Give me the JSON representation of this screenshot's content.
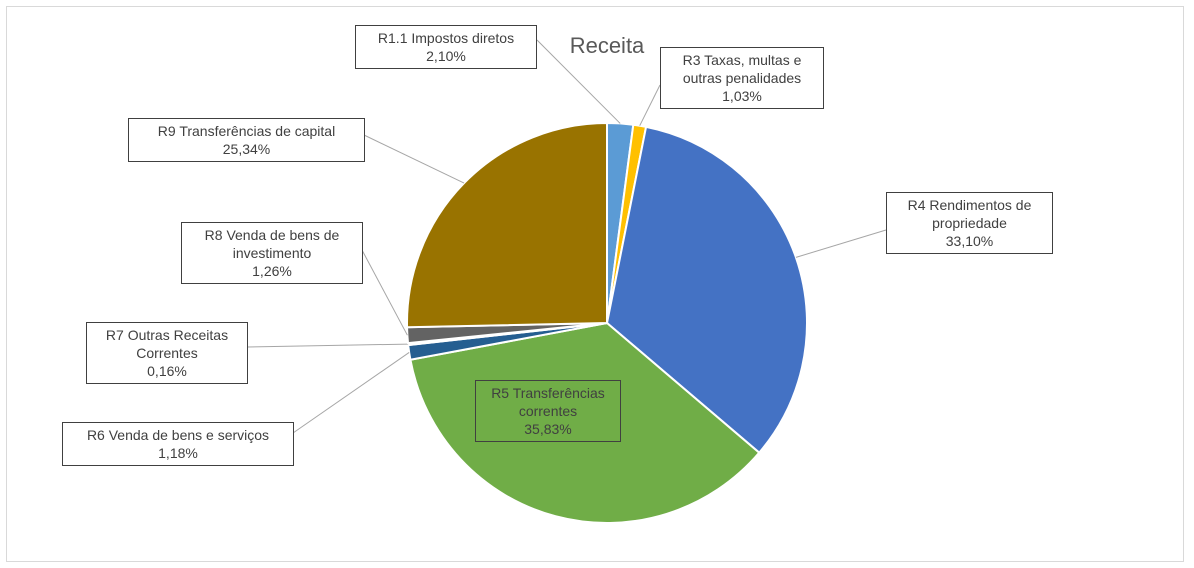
{
  "chart_data": {
    "type": "pie",
    "title": "Receita",
    "categories": [
      "R1.1 Impostos diretos",
      "R3 Taxas, multas e outras penalidades",
      "R4 Rendimentos de propriedade",
      "R5 Transferências correntes",
      "R6 Venda de bens e serviços",
      "R7 Outras Receitas Correntes",
      "R8 Venda de bens de investimento",
      "R9 Transferências de capital"
    ],
    "values": [
      2.1,
      1.03,
      33.1,
      35.83,
      1.18,
      0.16,
      1.26,
      25.34
    ],
    "value_labels": [
      "2,10%",
      "1,03%",
      "33,10%",
      "35,83%",
      "1,18%",
      "0,16%",
      "1,26%",
      "25,34%"
    ],
    "colors": [
      "#5b9bd5",
      "#ffc000",
      "#4472c4",
      "#70ad47",
      "#255e91",
      "#9e480e",
      "#636363",
      "#997300"
    ]
  }
}
